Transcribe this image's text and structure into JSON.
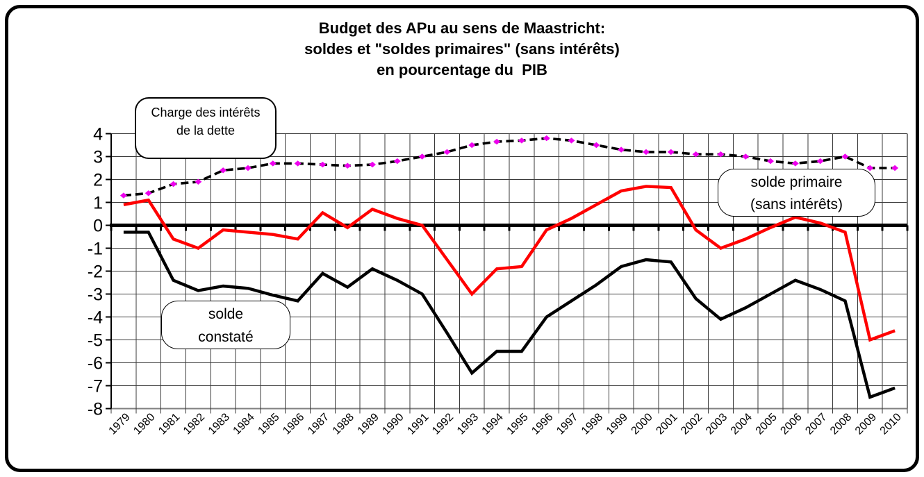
{
  "title": {
    "line1": "Budget des APu au sens de Maastricht:",
    "line2": "soldes et \"soldes primaires\" (sans intérêts)",
    "line3": "en pourcentage du  PIB"
  },
  "callouts": {
    "interest": {
      "line1": "Charge des intérêts",
      "line2": "de la dette"
    },
    "primary": {
      "line1": "solde primaire",
      "line2": "(sans intérêts)"
    },
    "balance": {
      "line1": "solde",
      "line2": "constaté"
    }
  },
  "y_axis": {
    "labels": [
      "4",
      "3",
      "2",
      "1",
      "0",
      "-1",
      "-2",
      "-3",
      "-4",
      "-5",
      "-6",
      "-7",
      "-8"
    ]
  },
  "chart_data": {
    "type": "line",
    "title": "Budget des APu au sens de Maastricht: soldes et \"soldes primaires\" (sans intérêts) en pourcentage du PIB",
    "categories": [
      "1979",
      "1980",
      "1981",
      "1982",
      "1983",
      "1984",
      "1985",
      "1986",
      "1987",
      "1988",
      "1989",
      "1990",
      "1991",
      "1992",
      "1993",
      "1994",
      "1995",
      "1996",
      "1997",
      "1998",
      "1999",
      "2000",
      "2001",
      "2002",
      "2003",
      "2004",
      "2005",
      "2006",
      "2007",
      "2008",
      "2009",
      "2010"
    ],
    "series": [
      {
        "name": "Charge des intérêts de la dette",
        "style": "dashed",
        "color": "#000000",
        "marker": "diamond",
        "marker_color": "#ee00ee",
        "values": [
          1.3,
          1.4,
          1.8,
          1.9,
          2.4,
          2.5,
          2.7,
          2.7,
          2.65,
          2.6,
          2.65,
          2.8,
          3.0,
          3.2,
          3.5,
          3.65,
          3.7,
          3.8,
          3.7,
          3.5,
          3.3,
          3.2,
          3.2,
          3.1,
          3.1,
          3.0,
          2.8,
          2.7,
          2.8,
          3.0,
          2.5,
          2.5
        ]
      },
      {
        "name": "solde primaire (sans intérêts)",
        "style": "solid",
        "color": "#ff0000",
        "values": [
          0.9,
          1.1,
          -0.6,
          -1.0,
          -0.2,
          -0.3,
          -0.4,
          -0.6,
          0.55,
          -0.1,
          0.7,
          0.3,
          0.0,
          -1.5,
          -3.0,
          -1.9,
          -1.8,
          -0.2,
          0.3,
          0.9,
          1.5,
          1.7,
          1.65,
          -0.2,
          -1.0,
          -0.6,
          -0.1,
          0.35,
          0.1,
          -0.3,
          -5.0,
          -4.6
        ]
      },
      {
        "name": "solde constaté",
        "style": "solid",
        "color": "#000000",
        "values": [
          -0.3,
          -0.3,
          -2.4,
          -2.85,
          -2.65,
          -2.75,
          -3.05,
          -3.3,
          -2.1,
          -2.7,
          -1.9,
          -2.4,
          -3.0,
          -4.7,
          -6.45,
          -5.5,
          -5.5,
          -4.0,
          -3.3,
          -2.6,
          -1.8,
          -1.5,
          -1.6,
          -3.2,
          -4.1,
          -3.6,
          -3.0,
          -2.4,
          -2.8,
          -3.3,
          -7.5,
          -7.1
        ]
      }
    ],
    "ylim": [
      -8,
      4
    ],
    "ytick_step": 1,
    "grid": true,
    "legend_position": "callouts-on-plot",
    "xlabel": "",
    "ylabel": ""
  }
}
